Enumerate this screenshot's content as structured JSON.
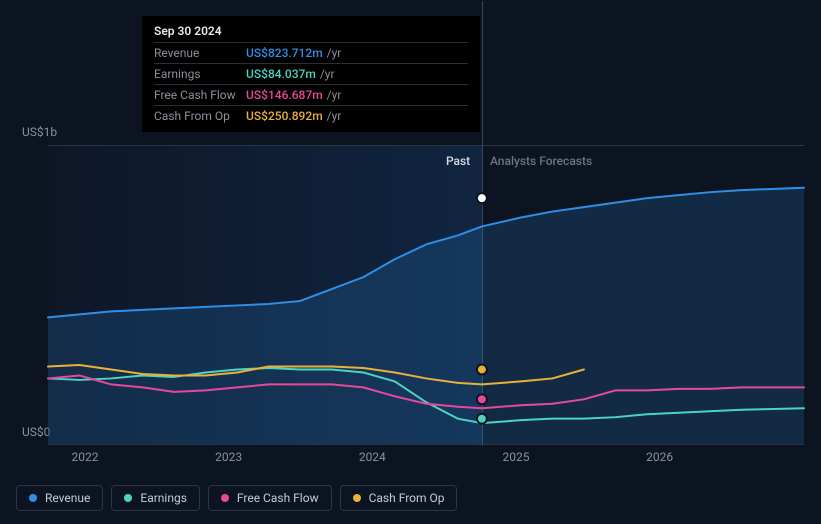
{
  "chart": {
    "type": "line",
    "background_color": "#0d1421",
    "grid_color": "#2a3444",
    "y_axis": {
      "min": 0,
      "max": 1000,
      "labels": [
        "US$0",
        "US$1b"
      ],
      "label_color": "#8a909c",
      "label_fontsize": 12
    },
    "x_axis": {
      "ticks": [
        "2022",
        "2023",
        "2024",
        "2025",
        "2026"
      ],
      "tick_positions_pct": [
        4.9,
        23.9,
        42.9,
        61.9,
        80.9
      ],
      "label_color": "#8a909c",
      "label_fontsize": 12
    },
    "sections": {
      "past": {
        "label": "Past",
        "color": "#d9dde3",
        "width_pct": 57.4
      },
      "forecast": {
        "label": "Analysts Forecasts",
        "color": "#6c7584"
      }
    },
    "series": [
      {
        "name": "Revenue",
        "color": "#2f8fe6",
        "line_width": 2,
        "area_fill": "rgba(47,143,230,0.18)",
        "y_pct": [
          57.5,
          56.5,
          55.5,
          55,
          54.5,
          54,
          53.5,
          53,
          52,
          48,
          44,
          38,
          33,
          30,
          27,
          24,
          22,
          20.5,
          19,
          17.5,
          16.5,
          15.5,
          14.8,
          14
        ],
        "marker": {
          "x_pct": 57.4,
          "y_pct": 17.5,
          "fill": "#ffffff"
        }
      },
      {
        "name": "Earnings",
        "color": "#4cd4c0",
        "line_width": 2,
        "y_pct": [
          78,
          78.5,
          78,
          77,
          77.5,
          76,
          75,
          74.5,
          75,
          75,
          76,
          79,
          86,
          91.5,
          93,
          92,
          91.5,
          91.5,
          91,
          90,
          89.5,
          89,
          88.5,
          88
        ],
        "marker": {
          "x_pct": 57.4,
          "y_pct": 91.5,
          "fill": "#4cd4c0"
        }
      },
      {
        "name": "Free Cash Flow",
        "color": "#e6499a",
        "line_width": 2,
        "y_pct": [
          78,
          77,
          80,
          81,
          82.5,
          82,
          81,
          80,
          80,
          80,
          81,
          84,
          86.5,
          87.5,
          88,
          87,
          86.5,
          85,
          82,
          82,
          81.5,
          81.5,
          81,
          81
        ],
        "marker": {
          "x_pct": 57.4,
          "y_pct": 85,
          "fill": "#e6499a"
        }
      },
      {
        "name": "Cash From Op",
        "color": "#eab13a",
        "line_width": 2,
        "y_pct": [
          74,
          73.5,
          75,
          76.5,
          77,
          77,
          76,
          74,
          74,
          74,
          74.5,
          76,
          78,
          79.5,
          80,
          79,
          78,
          75
        ],
        "marker": {
          "x_pct": 57.4,
          "y_pct": 75,
          "fill": "#eab13a"
        }
      }
    ],
    "x_positions_pct": [
      0,
      4.17,
      8.34,
      12.51,
      16.68,
      20.85,
      25.02,
      29.19,
      33.36,
      37.53,
      41.7,
      45.87,
      50.04,
      54.21,
      57.4,
      62.55,
      66.72,
      70.89,
      75.06,
      79.23,
      83.4,
      87.57,
      91.74,
      100
    ]
  },
  "tooltip": {
    "date": "Sep 30 2024",
    "rows": [
      {
        "label": "Revenue",
        "value": "US$823.712m",
        "unit": "/yr",
        "color": "#2f8fe6"
      },
      {
        "label": "Earnings",
        "value": "US$84.037m",
        "unit": "/yr",
        "color": "#4cd4c0"
      },
      {
        "label": "Free Cash Flow",
        "value": "US$146.687m",
        "unit": "/yr",
        "color": "#e6499a"
      },
      {
        "label": "Cash From Op",
        "value": "US$250.892m",
        "unit": "/yr",
        "color": "#eab13a"
      }
    ]
  },
  "legend": {
    "items": [
      {
        "label": "Revenue",
        "color": "#2f8fe6"
      },
      {
        "label": "Earnings",
        "color": "#4cd4c0"
      },
      {
        "label": "Free Cash Flow",
        "color": "#e6499a"
      },
      {
        "label": "Cash From Op",
        "color": "#eab13a"
      }
    ]
  }
}
